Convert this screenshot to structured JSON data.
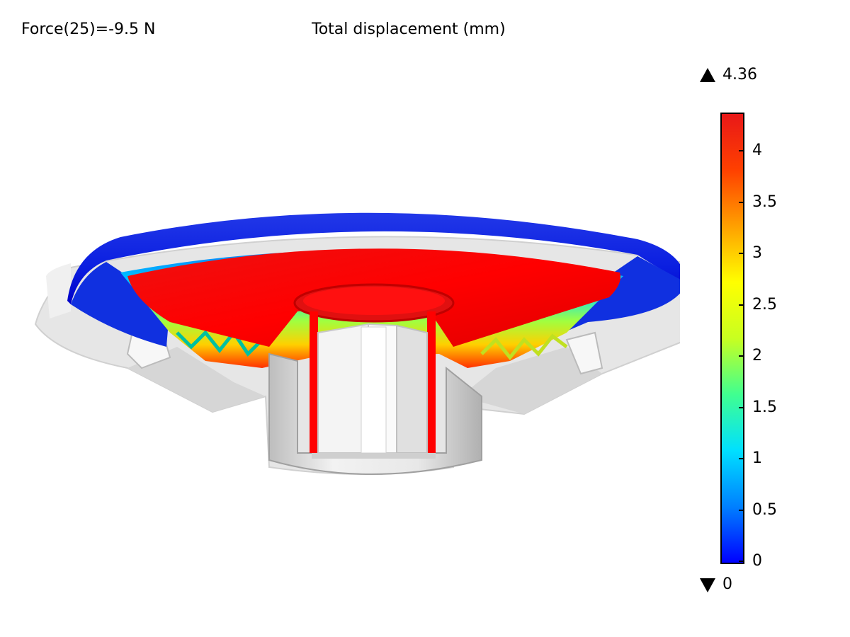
{
  "header": {
    "force_label": "Force(25)=-9.5 N",
    "plot_title": "Total displacement (mm)"
  },
  "colorbar": {
    "max_label": "4.36",
    "min_label": "0",
    "max_value": 4.36,
    "min_value": 0,
    "ticks": [
      "4",
      "3.5",
      "3",
      "2.5",
      "2",
      "1.5",
      "1",
      "0.5",
      "0"
    ],
    "tick_values": [
      4,
      3.5,
      3,
      2.5,
      2,
      1.5,
      1,
      0.5,
      0
    ],
    "max_icon": "triangle-up-icon",
    "min_icon": "triangle-down-icon",
    "colormap": [
      "#0000ff",
      "#0080ff",
      "#00e0ff",
      "#40ff90",
      "#c8ff20",
      "#ffff00",
      "#ffa000",
      "#ff4000",
      "#e81818"
    ]
  }
}
